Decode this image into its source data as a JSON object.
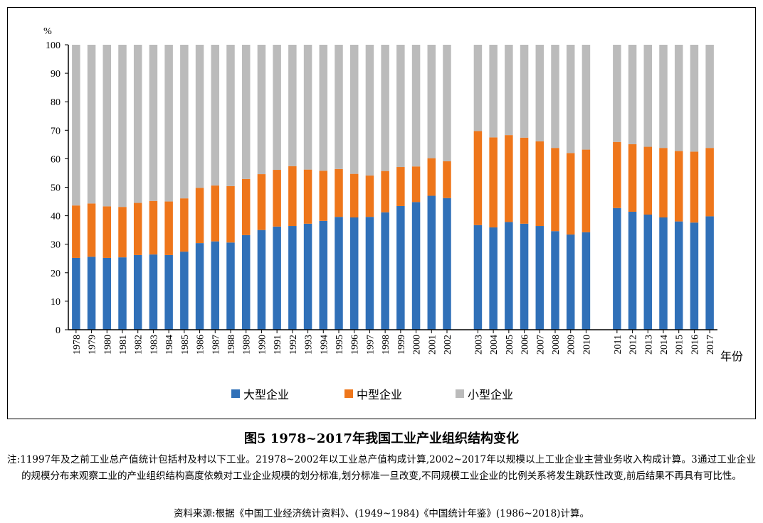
{
  "chart_data": {
    "type": "bar",
    "stacked": true,
    "title": "图5 1978~2017年我国工业产业组织结构变化",
    "ylabel": "%",
    "xlabel": "年份",
    "ylim": [
      0,
      100
    ],
    "yticks": [
      0,
      10,
      20,
      30,
      40,
      50,
      60,
      70,
      80,
      90,
      100
    ],
    "grid": false,
    "legend_placement": "bottom",
    "categories": [
      "1978",
      "1979",
      "1980",
      "1981",
      "1982",
      "1983",
      "1984",
      "1985",
      "1986",
      "1987",
      "1988",
      "1989",
      "1990",
      "1991",
      "1992",
      "1993",
      "1994",
      "1995",
      "1996",
      "1997",
      "1998",
      "1999",
      "2000",
      "2001",
      "2002",
      "2003",
      "2004",
      "2005",
      "2006",
      "2007",
      "2008",
      "2009",
      "2010",
      "2011",
      "2012",
      "2013",
      "2014",
      "2015",
      "2016",
      "2017"
    ],
    "category_groups": [
      [
        "1978",
        "2002"
      ],
      [
        "2003",
        "2010"
      ],
      [
        "2011",
        "2017"
      ]
    ],
    "series": [
      {
        "name": "大型企业",
        "color": "#3070b8",
        "values": [
          25.2,
          25.6,
          25.2,
          25.4,
          26.2,
          26.4,
          26.2,
          27.4,
          30.4,
          31.0,
          30.6,
          33.2,
          35.0,
          36.2,
          36.4,
          37.2,
          38.2,
          39.6,
          39.4,
          39.6,
          41.2,
          43.4,
          44.8,
          47.0,
          46.2,
          36.7,
          35.9,
          37.8,
          37.2,
          36.4,
          34.6,
          33.4,
          34.2,
          42.7,
          41.4,
          40.4,
          39.4,
          38.0,
          37.6,
          39.8
        ]
      },
      {
        "name": "中型企业",
        "color": "#ee761b",
        "values": [
          18.4,
          18.7,
          18.1,
          17.7,
          18.3,
          18.8,
          18.8,
          18.7,
          19.4,
          19.6,
          19.8,
          19.7,
          19.6,
          19.9,
          21.0,
          19.0,
          17.6,
          16.8,
          15.3,
          14.5,
          14.5,
          13.7,
          12.5,
          13.2,
          12.9,
          33.0,
          31.6,
          30.5,
          30.2,
          29.7,
          29.2,
          28.6,
          29.0,
          23.2,
          23.7,
          23.8,
          24.4,
          24.7,
          24.9,
          24.0
        ]
      },
      {
        "name": "小型企业",
        "color": "#bbbbbb",
        "values": [
          56.4,
          55.7,
          56.7,
          56.9,
          55.5,
          54.8,
          55.0,
          53.9,
          50.2,
          49.4,
          49.6,
          47.1,
          45.4,
          43.9,
          42.6,
          43.8,
          44.2,
          43.6,
          45.3,
          45.9,
          44.3,
          42.9,
          42.7,
          39.8,
          40.9,
          30.3,
          32.5,
          31.7,
          32.6,
          33.9,
          36.2,
          38.0,
          36.8,
          34.1,
          34.9,
          35.8,
          36.2,
          37.3,
          37.5,
          36.2
        ]
      }
    ]
  },
  "caption": {
    "title": "图5 1978~2017年我国工业产业组织结构变化",
    "note": "注:11997年及之前工业总产值统计包括村及村以下工业。21978~2002年以工业总产值构成计算,2002~2017年以规模以上工业企业主营业务收入构成计算。3通过工业企业的规模分布来观察工业的产业组织结构高度依赖对工业企业规模的划分标准,划分标准一旦改变,不同规模工业企业的比例关系将发生跳跃性改变,前后结果不再具有可比性。",
    "source": "资料来源:根据《中国工业经济统计资料》、(1949~1984)《中国统计年鉴》(1986~2018)计算。"
  }
}
